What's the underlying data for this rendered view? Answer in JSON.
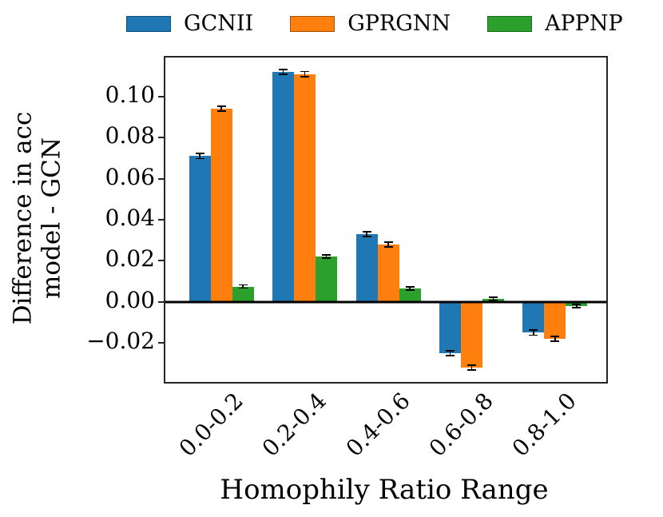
{
  "legend": {
    "items": [
      {
        "label": "GCNII",
        "color": "#1f77b4"
      },
      {
        "label": "GPRGNN",
        "color": "#ff7f0e"
      },
      {
        "label": "APPNP",
        "color": "#2ca02c"
      }
    ]
  },
  "chart_data": {
    "type": "bar",
    "title": "",
    "xlabel": "Homophily Ratio Range",
    "ylabel": "Difference in acc model - GCN",
    "ylabel_lines": [
      "Difference in acc",
      "model - GCN"
    ],
    "categories": [
      "0.0-0.2",
      "0.2-0.4",
      "0.4-0.6",
      "0.6-0.8",
      "0.8-1.0"
    ],
    "series": [
      {
        "name": "GCNII",
        "color": "#1f77b4",
        "values": [
          0.071,
          0.112,
          0.033,
          -0.025,
          -0.015
        ],
        "errors": [
          0.0012,
          0.0012,
          0.0012,
          0.0012,
          0.0012
        ]
      },
      {
        "name": "GPRGNN",
        "color": "#ff7f0e",
        "values": [
          0.094,
          0.111,
          0.028,
          -0.032,
          -0.018
        ],
        "errors": [
          0.0012,
          0.0012,
          0.0012,
          0.0012,
          0.0012
        ]
      },
      {
        "name": "APPNP",
        "color": "#2ca02c",
        "values": [
          0.0075,
          0.022,
          0.0065,
          0.0015,
          -0.002
        ],
        "errors": [
          0.0008,
          0.0008,
          0.0008,
          0.0008,
          0.0008
        ]
      }
    ],
    "yticks": [
      0.1,
      0.08,
      0.06,
      0.04,
      0.02,
      0.0,
      -0.02
    ],
    "ytick_labels": [
      "0.10",
      "0.08",
      "0.06",
      "0.04",
      "0.02",
      "0.00",
      "−0.02"
    ],
    "ylim": [
      -0.039,
      0.119
    ],
    "grid": false,
    "legend_position": "top",
    "error_bars": true,
    "axis_color": "#262626",
    "zero_line_color": "#000000"
  }
}
